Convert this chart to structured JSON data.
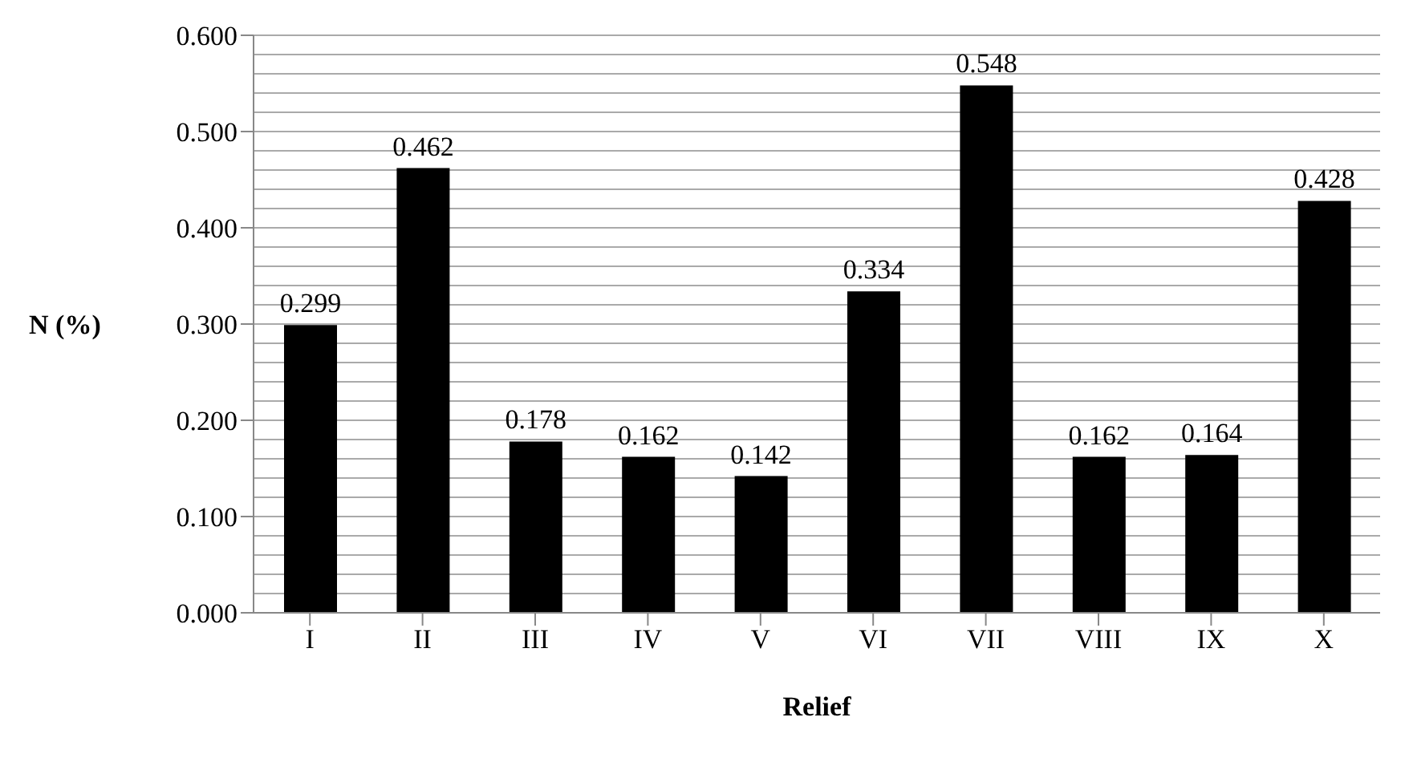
{
  "chart_data": {
    "type": "bar",
    "xlabel": "Relief",
    "ylabel": "N (%)",
    "categories": [
      "I",
      "II",
      "III",
      "IV",
      "V",
      "VI",
      "VII",
      "VIII",
      "IX",
      "X"
    ],
    "values": [
      0.299,
      0.462,
      0.178,
      0.162,
      0.142,
      0.334,
      0.548,
      0.162,
      0.164,
      0.428
    ],
    "color": "#000000",
    "data_labels": true,
    "ylim": [
      0,
      0.6
    ],
    "yticks": [
      "0.000",
      {
        "value": 0.02,
        "label": null
      },
      {
        "value": 0.04,
        "label": null
      },
      {
        "value": 0.06,
        "label": null
      },
      {
        "value": 0.08,
        "label": null
      },
      {
        "value": 0.1,
        "label": "0.100"
      },
      {
        "value": 0.12,
        "label": null
      },
      {
        "value": 0.14,
        "label": null
      },
      {
        "value": 0.16,
        "label": null
      },
      {
        "value": 0.18,
        "label": null
      },
      {
        "value": 0.2,
        "label": "0.200"
      },
      {
        "value": 0.22,
        "label": null
      },
      {
        "value": 0.24,
        "label": null
      },
      {
        "value": 0.26,
        "label": null
      },
      {
        "value": 0.28,
        "label": null
      },
      {
        "value": 0.3,
        "label": "0.300"
      },
      {
        "value": 0.32,
        "label": null
      },
      {
        "value": 0.34,
        "label": null
      },
      {
        "value": 0.36,
        "label": null
      },
      {
        "value": 0.38,
        "label": null
      },
      {
        "value": 0.4,
        "label": "0.400"
      },
      {
        "value": 0.42,
        "label": null
      },
      {
        "value": 0.44,
        "label": null
      },
      {
        "value": 0.46,
        "label": null
      },
      {
        "value": 0.48,
        "label": null
      },
      {
        "value": 0.5,
        "label": "0.500"
      },
      {
        "value": 0.52,
        "label": null
      },
      {
        "value": 0.54,
        "label": null
      },
      {
        "value": 0.56,
        "label": null
      },
      {
        "value": 0.58,
        "label": null
      },
      {
        "value": 0.6,
        "label": "0.600"
      }
    ],
    "grid": "y",
    "legend": false
  }
}
